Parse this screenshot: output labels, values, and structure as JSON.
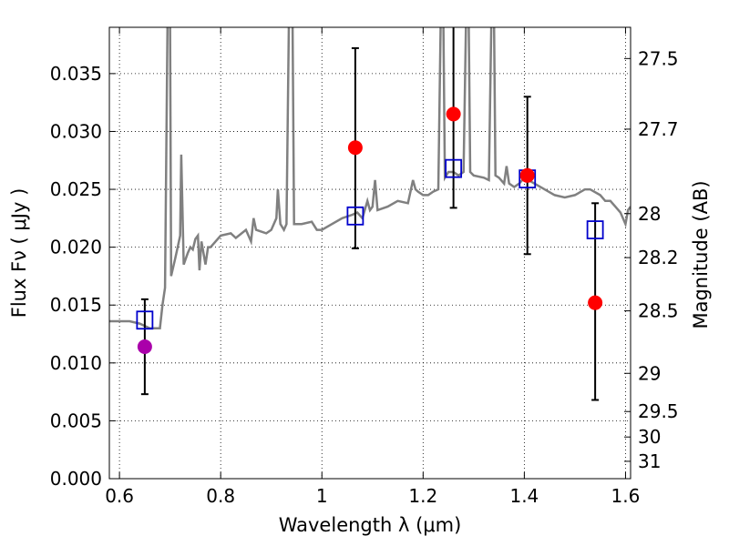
{
  "chart_data": {
    "type": "scatter",
    "xlabel": "Wavelength  λ (μm)",
    "ylabel": "Flux  Fν  ( μJy )",
    "y2label": "Magnitude (AB)",
    "xlim": [
      0.58,
      1.61
    ],
    "ylim": [
      0.0,
      0.039
    ],
    "grid": true,
    "x_ticks": [
      0.6,
      0.8,
      1.0,
      1.2,
      1.4,
      1.6
    ],
    "x_tick_labels": [
      "0.6",
      "0.8",
      "1",
      "1.2",
      "1.4",
      "1.6"
    ],
    "y_ticks": [
      0.0,
      0.005,
      0.01,
      0.015,
      0.02,
      0.025,
      0.03,
      0.035
    ],
    "y_tick_labels": [
      "0.000",
      "0.005",
      "0.010",
      "0.015",
      "0.020",
      "0.025",
      "0.030",
      "0.035"
    ],
    "y2_ticks": [
      {
        "label": "27.5",
        "flux": 0.0363
      },
      {
        "label": "27.7",
        "flux": 0.0302
      },
      {
        "label": "28",
        "flux": 0.0229
      },
      {
        "label": "28.2",
        "flux": 0.0191
      },
      {
        "label": "28.5",
        "flux": 0.0145
      },
      {
        "label": "29",
        "flux": 0.0091
      },
      {
        "label": "29.5",
        "flux": 0.0058
      },
      {
        "label": "30",
        "flux": 0.0036
      },
      {
        "label": "31",
        "flux": 0.0015
      }
    ],
    "series": [
      {
        "kind": "line",
        "color": "#808080",
        "points": [
          [
            0.58,
            0.0136
          ],
          [
            0.62,
            0.0136
          ],
          [
            0.64,
            0.0134
          ],
          [
            0.66,
            0.013
          ],
          [
            0.68,
            0.013
          ],
          [
            0.685,
            0.015
          ],
          [
            0.69,
            0.0165
          ],
          [
            0.695,
            0.04
          ],
          [
            0.7,
            0.04
          ],
          [
            0.702,
            0.0175
          ],
          [
            0.71,
            0.019
          ],
          [
            0.715,
            0.02
          ],
          [
            0.72,
            0.021
          ],
          [
            0.722,
            0.028
          ],
          [
            0.727,
            0.0185
          ],
          [
            0.735,
            0.0195
          ],
          [
            0.74,
            0.02
          ],
          [
            0.745,
            0.0198
          ],
          [
            0.75,
            0.0207
          ],
          [
            0.755,
            0.021
          ],
          [
            0.758,
            0.018
          ],
          [
            0.762,
            0.0205
          ],
          [
            0.77,
            0.0185
          ],
          [
            0.775,
            0.02
          ],
          [
            0.78,
            0.02
          ],
          [
            0.79,
            0.0205
          ],
          [
            0.8,
            0.021
          ],
          [
            0.82,
            0.0212
          ],
          [
            0.83,
            0.0208
          ],
          [
            0.85,
            0.0215
          ],
          [
            0.86,
            0.0205
          ],
          [
            0.865,
            0.0225
          ],
          [
            0.87,
            0.0215
          ],
          [
            0.89,
            0.0212
          ],
          [
            0.9,
            0.0215
          ],
          [
            0.91,
            0.0225
          ],
          [
            0.913,
            0.025
          ],
          [
            0.918,
            0.022
          ],
          [
            0.925,
            0.0215
          ],
          [
            0.93,
            0.022
          ],
          [
            0.935,
            0.04
          ],
          [
            0.942,
            0.04
          ],
          [
            0.945,
            0.022
          ],
          [
            0.96,
            0.022
          ],
          [
            0.98,
            0.0222
          ],
          [
            0.99,
            0.0215
          ],
          [
            1.0,
            0.0215
          ],
          [
            1.02,
            0.022
          ],
          [
            1.04,
            0.0225
          ],
          [
            1.06,
            0.0228
          ],
          [
            1.07,
            0.023
          ],
          [
            1.08,
            0.0225
          ],
          [
            1.09,
            0.024
          ],
          [
            1.095,
            0.0232
          ],
          [
            1.1,
            0.0235
          ],
          [
            1.105,
            0.0258
          ],
          [
            1.11,
            0.0232
          ],
          [
            1.13,
            0.0235
          ],
          [
            1.15,
            0.024
          ],
          [
            1.17,
            0.0238
          ],
          [
            1.18,
            0.0258
          ],
          [
            1.185,
            0.025
          ],
          [
            1.19,
            0.0248
          ],
          [
            1.2,
            0.0245
          ],
          [
            1.21,
            0.0245
          ],
          [
            1.22,
            0.0248
          ],
          [
            1.23,
            0.025
          ],
          [
            1.235,
            0.04
          ],
          [
            1.24,
            0.04
          ],
          [
            1.243,
            0.026
          ],
          [
            1.25,
            0.0265
          ],
          [
            1.26,
            0.0265
          ],
          [
            1.27,
            0.0262
          ],
          [
            1.28,
            0.0265
          ],
          [
            1.285,
            0.04
          ],
          [
            1.29,
            0.04
          ],
          [
            1.293,
            0.0265
          ],
          [
            1.3,
            0.0262
          ],
          [
            1.32,
            0.026
          ],
          [
            1.33,
            0.0258
          ],
          [
            1.335,
            0.04
          ],
          [
            1.34,
            0.04
          ],
          [
            1.343,
            0.0262
          ],
          [
            1.35,
            0.026
          ],
          [
            1.36,
            0.0255
          ],
          [
            1.365,
            0.027
          ],
          [
            1.37,
            0.0255
          ],
          [
            1.38,
            0.0252
          ],
          [
            1.39,
            0.0255
          ],
          [
            1.4,
            0.026
          ],
          [
            1.42,
            0.0255
          ],
          [
            1.44,
            0.025
          ],
          [
            1.46,
            0.0245
          ],
          [
            1.48,
            0.0243
          ],
          [
            1.5,
            0.0245
          ],
          [
            1.52,
            0.025
          ],
          [
            1.53,
            0.025
          ],
          [
            1.55,
            0.0245
          ],
          [
            1.56,
            0.024
          ],
          [
            1.57,
            0.024
          ],
          [
            1.58,
            0.0235
          ],
          [
            1.59,
            0.023
          ],
          [
            1.6,
            0.022
          ],
          [
            1.605,
            0.0232
          ],
          [
            1.61,
            0.0235
          ]
        ]
      },
      {
        "kind": "errorbar",
        "color": "#000000",
        "points": [
          {
            "x": 0.65,
            "low": 0.0073,
            "high": 0.0155
          },
          {
            "x": 1.066,
            "low": 0.0199,
            "high": 0.0372
          },
          {
            "x": 1.26,
            "low": 0.0234,
            "high": 0.04
          },
          {
            "x": 1.406,
            "low": 0.0194,
            "high": 0.033
          },
          {
            "x": 1.54,
            "low": 0.0068,
            "high": 0.0238
          }
        ]
      },
      {
        "kind": "open-square",
        "color": "#0000cc",
        "points": [
          [
            0.65,
            0.0137
          ],
          [
            1.066,
            0.0227
          ],
          [
            1.26,
            0.0268
          ],
          [
            1.406,
            0.0259
          ],
          [
            1.54,
            0.0215
          ]
        ]
      },
      {
        "kind": "filled-circle",
        "color": "#ff0000",
        "points": [
          [
            1.066,
            0.0286
          ],
          [
            1.26,
            0.0315
          ],
          [
            1.406,
            0.0262
          ],
          [
            1.54,
            0.0152
          ]
        ]
      },
      {
        "kind": "filled-circle",
        "color": "#aa00aa",
        "points": [
          [
            0.65,
            0.0114
          ]
        ]
      }
    ]
  }
}
